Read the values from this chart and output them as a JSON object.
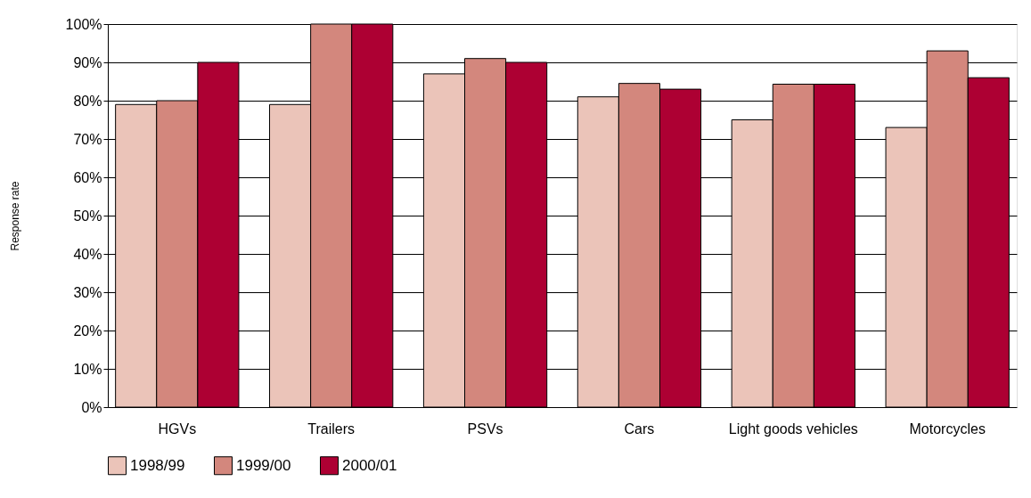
{
  "chart_data": {
    "type": "bar",
    "ylabel": "Response rate",
    "categories": [
      "HGVs",
      "Trailers",
      "PSVs",
      "Cars",
      "Light goods vehicles",
      "Motorcycles"
    ],
    "series": [
      {
        "name": "1998/99",
        "color": "#ebc4b9",
        "values": [
          79,
          79,
          87,
          81,
          75,
          73
        ]
      },
      {
        "name": "1999/00",
        "color": "#d3877d",
        "values": [
          80,
          100,
          91,
          84.5,
          84.3,
          93
        ]
      },
      {
        "name": "2000/01",
        "color": "#ad0033",
        "values": [
          90,
          100,
          90,
          83,
          84.3,
          86
        ]
      }
    ],
    "ylim": [
      0,
      100
    ],
    "yticks": [
      {
        "value": 0,
        "label": "0%"
      },
      {
        "value": 10,
        "label": "10%"
      },
      {
        "value": 20,
        "label": "20%"
      },
      {
        "value": 30,
        "label": "30%"
      },
      {
        "value": 40,
        "label": "40%"
      },
      {
        "value": 50,
        "label": "50%"
      },
      {
        "value": 60,
        "label": "60%"
      },
      {
        "value": 70,
        "label": "70%"
      },
      {
        "value": 80,
        "label": "80%"
      },
      {
        "value": 90,
        "label": "90%"
      },
      {
        "value": 100,
        "label": "100%"
      }
    ],
    "grid": "y",
    "legend": "bottom left"
  }
}
